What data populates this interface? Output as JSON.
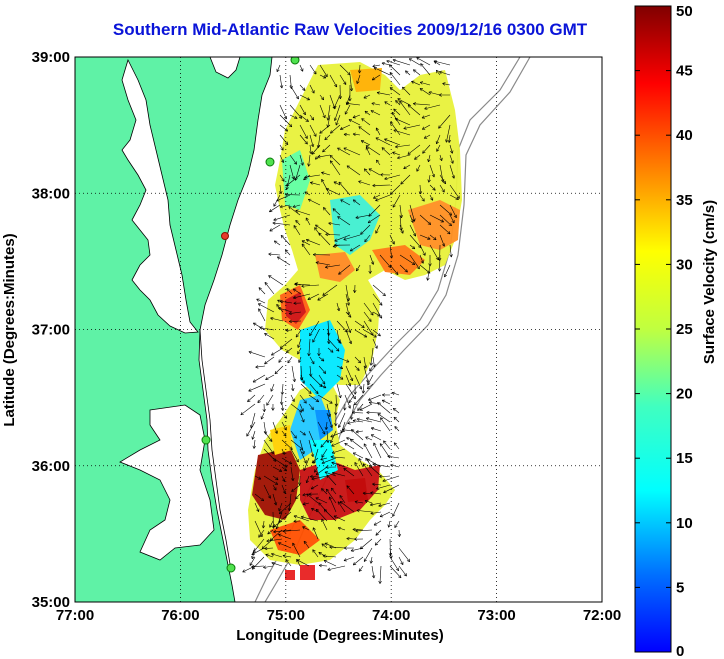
{
  "title": "Southern Mid-Atlantic Raw Velocities 2009/12/16 0300 GMT",
  "map": {
    "lon_range": [
      -77,
      -72
    ],
    "lat_range": [
      35,
      39
    ],
    "x_ticks": [
      "77:00",
      "76:00",
      "75:00",
      "74:00",
      "73:00",
      "72:00"
    ],
    "y_ticks": [
      "39:00",
      "38:00",
      "37:00",
      "36:00",
      "35:00"
    ],
    "xlabel": "Longitude (Degrees:Minutes)",
    "ylabel": "Latitude (Degrees:Minutes)",
    "grid": true,
    "land_color": "#5ff2a6"
  },
  "colorbar": {
    "label": "Surface Velocity (cm/s)",
    "ticks": [
      "50",
      "45",
      "40",
      "35",
      "30",
      "25",
      "20",
      "15",
      "10",
      "5",
      "0"
    ],
    "range": [
      0,
      50
    ],
    "colormap": "jet"
  }
}
